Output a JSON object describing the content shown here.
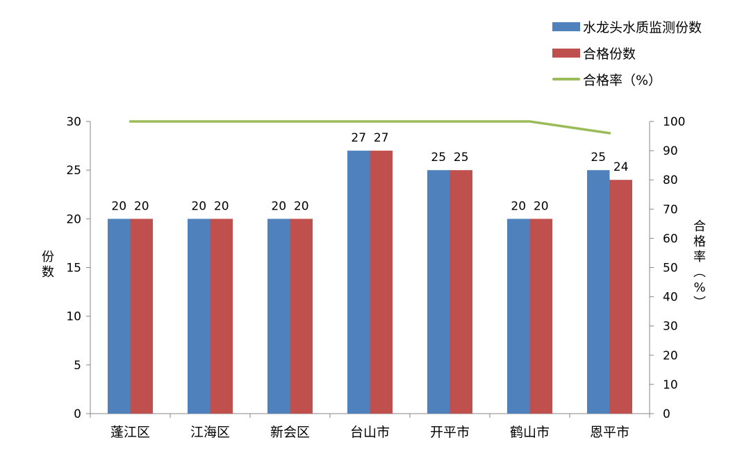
{
  "chart_data": {
    "type": "bar",
    "title": "",
    "categories": [
      "蓬江区",
      "江海区",
      "新会区",
      "台山市",
      "开平市",
      "鹤山市",
      "恩平市"
    ],
    "series": [
      {
        "name": "水龙头水质监测份数",
        "type": "bar",
        "axis": "left",
        "color": "#4f81bd",
        "values": [
          20,
          20,
          20,
          27,
          25,
          20,
          25
        ]
      },
      {
        "name": "合格份数",
        "type": "bar",
        "axis": "left",
        "color": "#c0504d",
        "values": [
          20,
          20,
          20,
          27,
          25,
          20,
          24
        ]
      },
      {
        "name": "合格率（%）",
        "type": "line",
        "axis": "right",
        "color": "#9bbb59",
        "values": [
          100,
          100,
          100,
          100,
          100,
          100,
          96
        ]
      }
    ],
    "xlabel": "",
    "ylabel": "份数",
    "y2label": "合格率（%）",
    "ylim": [
      0,
      30
    ],
    "yticks": [
      0,
      5,
      10,
      15,
      20,
      25,
      30
    ],
    "y2lim": [
      0,
      100
    ],
    "y2ticks": [
      0,
      10,
      20,
      30,
      40,
      50,
      60,
      70,
      80,
      90,
      100
    ],
    "grid": false,
    "data_labels": true,
    "legend_position": "top-right"
  },
  "legend": {
    "items": [
      {
        "label": "水龙头水质监测份数",
        "kind": "bar",
        "color": "#4f81bd"
      },
      {
        "label": "合格份数",
        "kind": "bar",
        "color": "#c0504d"
      },
      {
        "label": "合格率（%）",
        "kind": "line",
        "color": "#9bbb59"
      }
    ]
  },
  "axes": {
    "left_title_chars": [
      "份",
      "数"
    ],
    "right_title_chars": [
      "合",
      "格",
      "率",
      "︵",
      "%",
      "︶"
    ]
  }
}
